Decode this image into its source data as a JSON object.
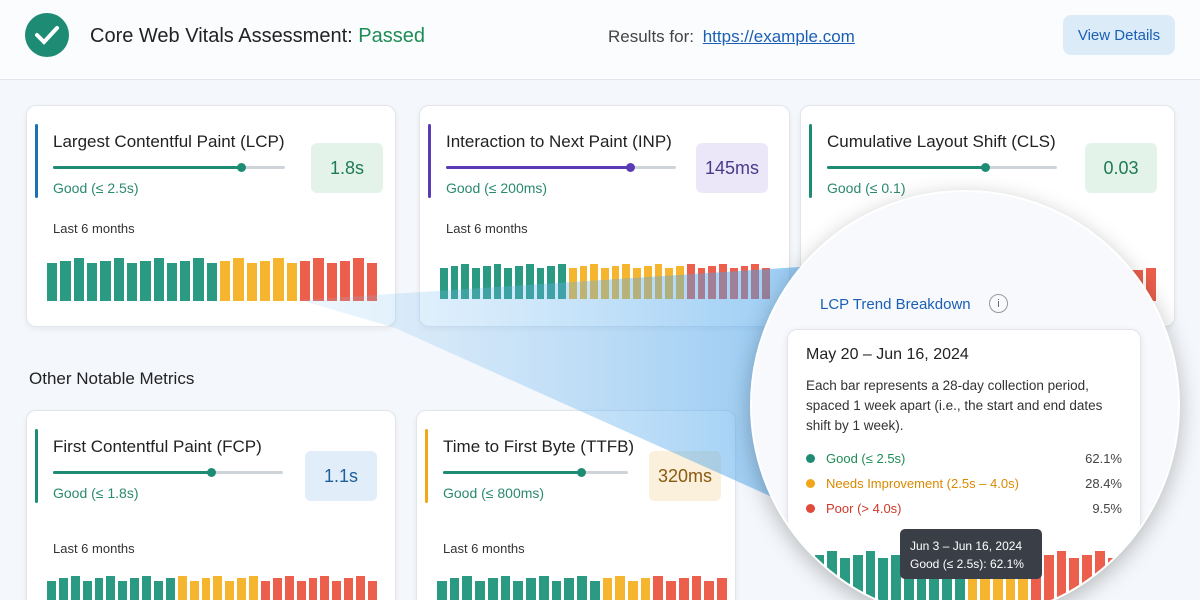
{
  "header": {
    "title": "Core Web Vitals Assessment:",
    "status": "Passed",
    "results_label": "Results for:",
    "url": "https://example.com",
    "button": "View Details"
  },
  "metrics": [
    {
      "name": "Largest Contentful Paint (LCP)",
      "value": "1.8s",
      "threshold": "Good (≤ 2.5s)",
      "period": "Last 6 months"
    },
    {
      "name": "Interaction to Next Paint (INP)",
      "value": "145ms",
      "threshold": "Good (≤ 200ms)",
      "period": "Last 6 months"
    },
    {
      "name": "Cumulative Layout Shift (CLS)",
      "value": "0.03",
      "threshold": "Good (≤ 0.1)"
    }
  ],
  "other_metrics": {
    "heading": "Other Notable Metrics",
    "items": [
      {
        "name": "First Contentful Paint (FCP)",
        "value": "1.1s",
        "threshold": "Good (≤ 1.8s)",
        "period": "Last 6 months"
      },
      {
        "name": "Time to First Byte (TTFB)",
        "value": "320ms",
        "threshold": "Good (≤ 800ms)",
        "period": "Last 6 months"
      }
    ]
  },
  "breakdown": {
    "title": "LCP Trend Breakdown",
    "info": "i",
    "range": "May 20 – Jun 16, 2024",
    "description": "Each bar represents a 28-day collection period, spaced 1 week apart (i.e., the start and end dates shift by 1 week).",
    "legend": [
      {
        "label": "Good (≤ 2.5s)",
        "value": "62.1%"
      },
      {
        "label": "Needs Improvement (2.5s – 4.0s)",
        "value": "28.4%"
      },
      {
        "label": "Poor (> 4.0s)",
        "value": "9.5%"
      }
    ],
    "tooltip": {
      "range": "Jun 3 – Jun 16, 2024",
      "text": "Good (≤ 2.5s): 62.1%"
    }
  }
}
